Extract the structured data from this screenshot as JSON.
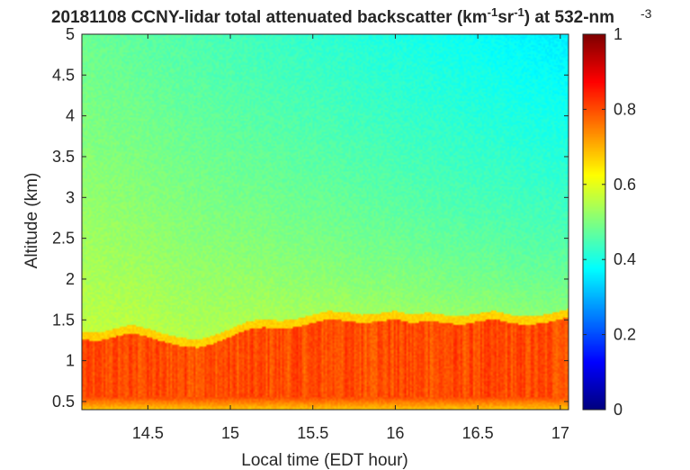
{
  "chart_data": {
    "type": "heatmap",
    "title_parts": [
      {
        "text": "20181108 CCNY-lidar total attenuated backscatter (km",
        "sup": false
      },
      {
        "text": "-1",
        "sup": true
      },
      {
        "text": "sr",
        "sup": false
      },
      {
        "text": "-1",
        "sup": true
      },
      {
        "text": ") at 532-nm",
        "sup": false
      }
    ],
    "colorbar_exponent": "-3",
    "xlabel": "Local time (EDT hour)",
    "ylabel": "Altitude (km)",
    "xlim": [
      14.1,
      17.05
    ],
    "ylim": [
      0.4,
      5
    ],
    "xticks": [
      14.5,
      15,
      15.5,
      16,
      16.5,
      17
    ],
    "yticks": [
      0.5,
      1,
      1.5,
      2,
      2.5,
      3,
      3.5,
      4,
      4.5,
      5
    ],
    "colorbar": {
      "min": 0,
      "max": 1,
      "ticks": [
        0,
        0.2,
        0.4,
        0.6,
        0.8,
        1
      ],
      "colormap": "jet"
    },
    "boundary_layer_top": {
      "x": [
        14.1,
        14.2,
        14.3,
        14.4,
        14.5,
        14.6,
        14.7,
        14.8,
        14.9,
        15.0,
        15.1,
        15.2,
        15.3,
        15.4,
        15.5,
        15.6,
        15.7,
        15.8,
        15.9,
        16.0,
        16.1,
        16.2,
        16.3,
        16.4,
        16.5,
        16.6,
        16.7,
        16.8,
        16.9,
        17.0,
        17.05
      ],
      "y": [
        1.3,
        1.28,
        1.33,
        1.38,
        1.33,
        1.27,
        1.22,
        1.2,
        1.25,
        1.33,
        1.42,
        1.45,
        1.43,
        1.45,
        1.5,
        1.55,
        1.53,
        1.5,
        1.52,
        1.55,
        1.5,
        1.53,
        1.5,
        1.48,
        1.52,
        1.55,
        1.5,
        1.48,
        1.5,
        1.55,
        1.57
      ]
    },
    "levels": {
      "bottom": 0.68,
      "mixed_layer": 0.8,
      "above_layer": 0.57,
      "top_left": 0.48,
      "top_right": 0.36
    }
  }
}
